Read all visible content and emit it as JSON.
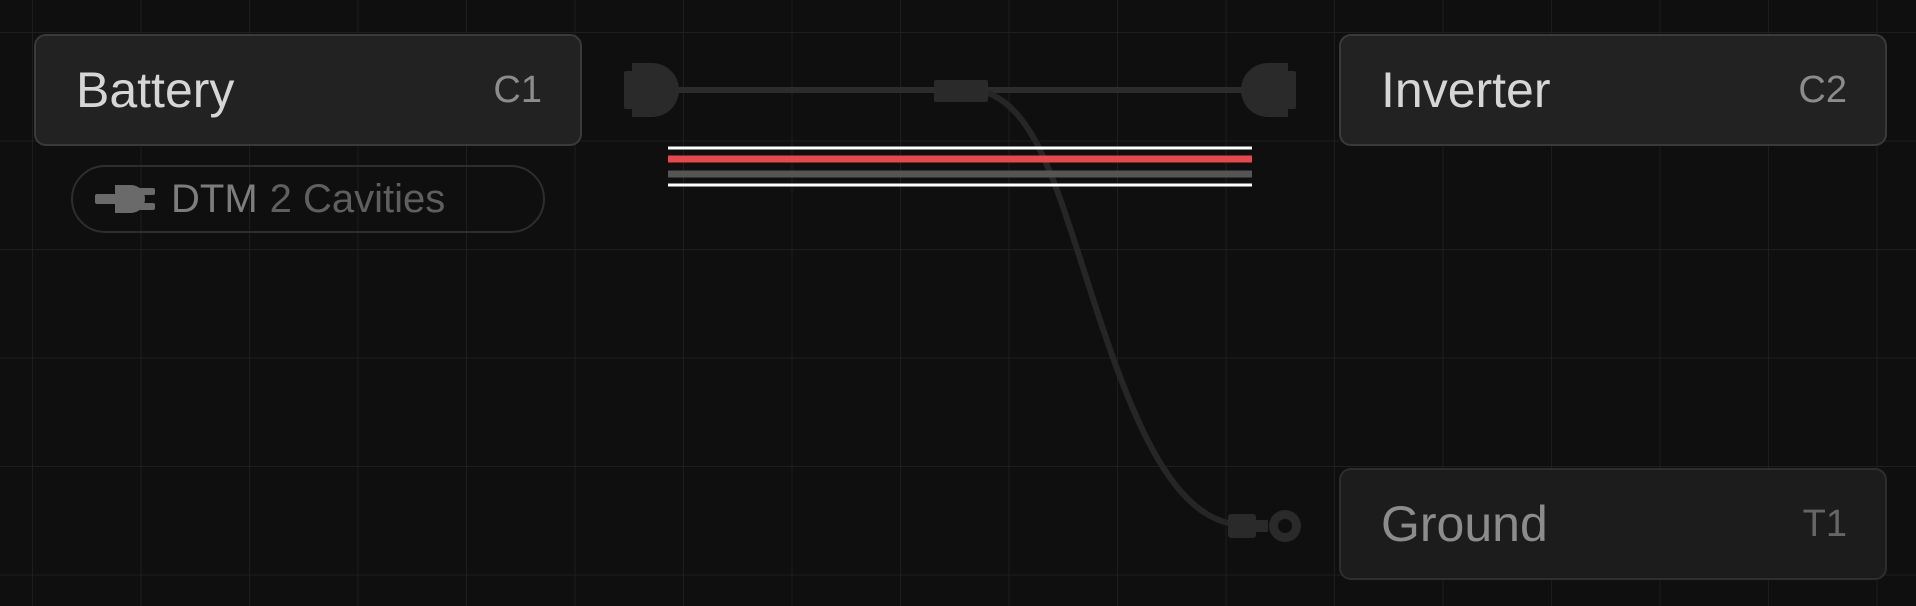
{
  "nodes": {
    "battery": {
      "name": "Battery",
      "code": "C1"
    },
    "inverter": {
      "name": "Inverter",
      "code": "C2"
    },
    "ground": {
      "name": "Ground",
      "code": "T1"
    }
  },
  "connector_badge": {
    "type": "DTM",
    "detail": "2 Cavities",
    "icon": "plug-icon"
  },
  "wire_bundle": {
    "colors": [
      "#ffffff",
      "#e5484d",
      "#555555",
      "#ffffff"
    ]
  },
  "connectors": {
    "left": "connector-icon",
    "right": "connector-icon",
    "ring": "ring-terminal-icon"
  }
}
